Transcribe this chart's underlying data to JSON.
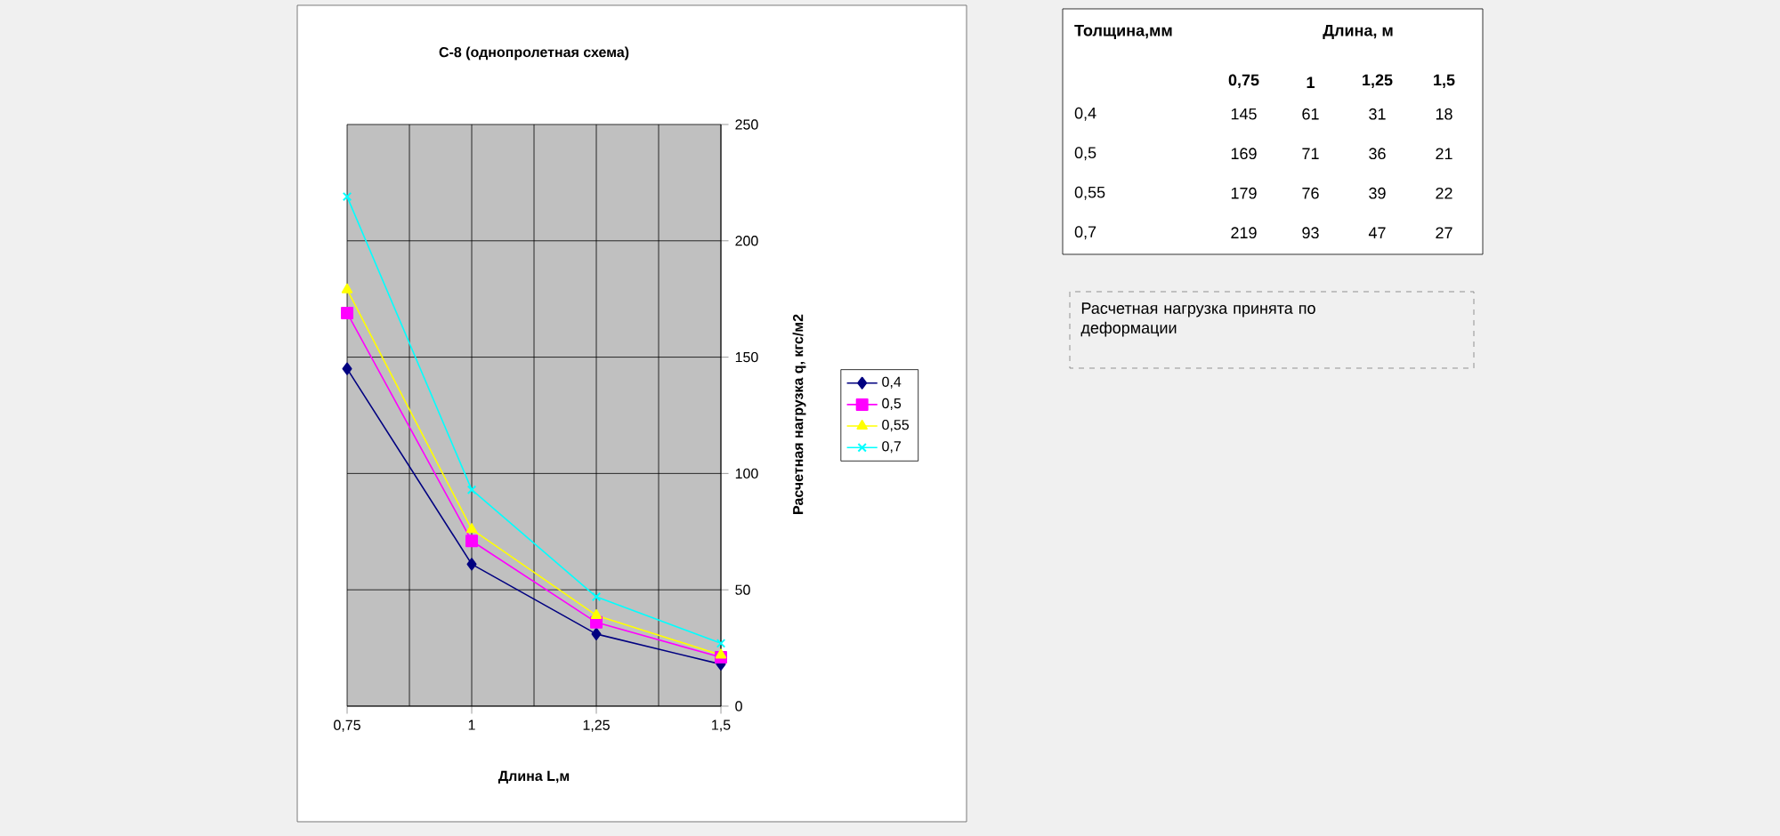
{
  "chart_data": [
    {
      "type": "line",
      "title": "С-8 (однопролетная схема)",
      "xlabel": "Длина L,м",
      "ylabel": "Расчетная нагрузка q, кгс/м2",
      "annotations": [
        "Расчетная нагрузка принята по деформации"
      ],
      "categories": [
        "0,75",
        "1",
        "1,25",
        "1,5"
      ],
      "series": [
        {
          "name": "0,4",
          "color": "#000080",
          "marker": "diamond",
          "values": [
            145,
            61,
            31,
            18
          ]
        },
        {
          "name": "0,5",
          "color": "#ff00ff",
          "marker": "square",
          "values": [
            169,
            71,
            36,
            21
          ]
        },
        {
          "name": "0,55",
          "color": "#ffff00",
          "marker": "triangle",
          "values": [
            179,
            76,
            39,
            22
          ]
        },
        {
          "name": "0,7",
          "color": "#00ffff",
          "marker": "cross",
          "values": [
            219,
            93,
            47,
            27
          ]
        }
      ],
      "ylim": [
        0,
        250
      ],
      "yticks": [
        0,
        50,
        100,
        150,
        200,
        250
      ],
      "grid": true,
      "legend": "right"
    },
    {
      "type": "heatmap",
      "xlabel": "Длина, м",
      "ylabel": "Толщина,мм",
      "categories": [
        "0,75",
        "1",
        "1,25",
        "1,5"
      ],
      "y_categories": [
        "0,4",
        "0,5",
        "0,55",
        "0,7"
      ],
      "cells": [
        [
          145,
          61,
          31,
          18
        ],
        [
          169,
          71,
          36,
          21
        ],
        [
          179,
          76,
          39,
          22
        ],
        [
          219,
          93,
          47,
          27
        ]
      ],
      "data_labels": true
    }
  ]
}
